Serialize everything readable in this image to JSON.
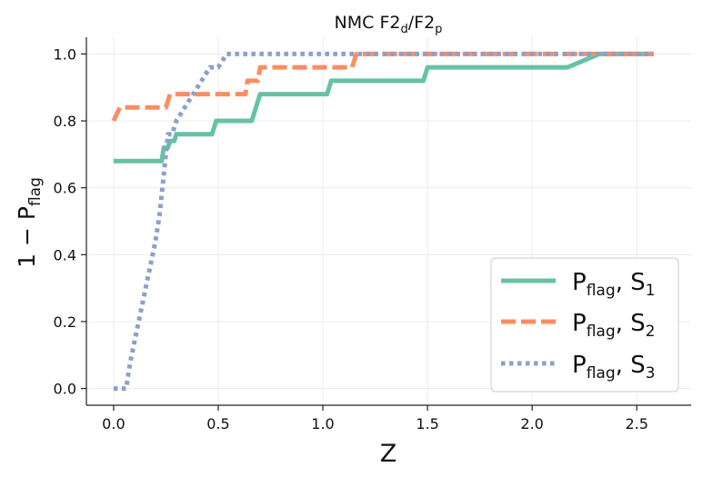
{
  "chart_data": {
    "type": "line",
    "title": "NMC F2",
    "title_sub1": "d",
    "title_mid": "/F2",
    "title_sub2": "p",
    "xlabel": "Z",
    "ylabel_main": "1 − P",
    "ylabel_sub": "flag",
    "xlim": [
      -0.13,
      2.76
    ],
    "ylim": [
      -0.05,
      1.05
    ],
    "xticks": [
      0.0,
      0.5,
      1.0,
      1.5,
      2.0,
      2.5
    ],
    "xtick_labels": [
      "0.0",
      "0.5",
      "1.0",
      "1.5",
      "2.0",
      "2.5"
    ],
    "yticks": [
      0.0,
      0.2,
      0.4,
      0.6,
      0.8,
      1.0
    ],
    "ytick_labels": [
      "0.0",
      "0.2",
      "0.4",
      "0.6",
      "0.8",
      "1.0"
    ],
    "grid": true,
    "legend_position": "bottom-right",
    "series": [
      {
        "name": "P_flag, S_1",
        "legend_main": "P",
        "legend_sub": "flag",
        "legend_suffix": ", S",
        "legend_index": "1",
        "color": "#66c2a5",
        "style": "solid",
        "x": [
          0.0,
          0.23,
          0.24,
          0.26,
          0.27,
          0.29,
          0.3,
          0.47,
          0.49,
          0.66,
          0.67,
          0.68,
          0.69,
          0.7,
          1.02,
          1.04,
          1.48,
          1.5,
          2.17,
          2.32,
          2.58
        ],
        "y": [
          0.68,
          0.68,
          0.72,
          0.72,
          0.74,
          0.74,
          0.76,
          0.76,
          0.8,
          0.8,
          0.82,
          0.84,
          0.86,
          0.88,
          0.88,
          0.92,
          0.92,
          0.96,
          0.96,
          1.0,
          1.0
        ]
      },
      {
        "name": "P_flag, S_2",
        "legend_main": "P",
        "legend_sub": "flag",
        "legend_suffix": ", S",
        "legend_index": "2",
        "color": "#fc8d62",
        "style": "dashed",
        "x": [
          0.0,
          0.03,
          0.25,
          0.27,
          0.63,
          0.64,
          0.69,
          0.7,
          1.14,
          1.16,
          2.58
        ],
        "y": [
          0.8,
          0.84,
          0.84,
          0.88,
          0.88,
          0.92,
          0.92,
          0.96,
          0.96,
          1.0,
          1.0
        ]
      },
      {
        "name": "P_flag, S_3",
        "legend_main": "P",
        "legend_sub": "flag",
        "legend_suffix": ", S",
        "legend_index": "3",
        "color": "#8da0cb",
        "style": "dotted",
        "x": [
          0.0,
          0.06,
          0.08,
          0.12,
          0.16,
          0.2,
          0.22,
          0.24,
          0.26,
          0.28,
          0.3,
          0.34,
          0.38,
          0.42,
          0.46,
          0.5,
          0.54,
          2.58
        ],
        "y": [
          0.0,
          0.0,
          0.08,
          0.2,
          0.32,
          0.44,
          0.52,
          0.64,
          0.76,
          0.76,
          0.8,
          0.84,
          0.88,
          0.92,
          0.96,
          0.96,
          1.0,
          1.0
        ]
      }
    ]
  }
}
